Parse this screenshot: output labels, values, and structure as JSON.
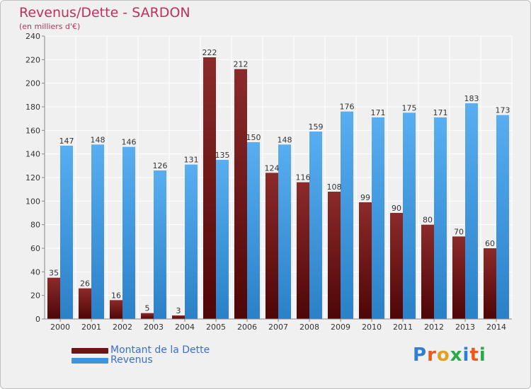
{
  "header": {
    "title": "Revenus/Dette - SARDON",
    "subtitle": "(en milliers d'€)"
  },
  "legend": [
    {
      "label": "Montant de la Dette",
      "color": "#6d1515"
    },
    {
      "label": "Revenus",
      "color": "#3f95dc"
    }
  ],
  "logo": {
    "letters": [
      "P",
      "r",
      "o",
      "x",
      "i",
      "t",
      "i"
    ],
    "colors": [
      "#2f7fd0",
      "#e85a1e",
      "#e0a020",
      "#2fa84a",
      "#2f7fd0",
      "#e85a1e",
      "#2fa84a"
    ]
  },
  "chart_data": {
    "type": "bar",
    "title": "Revenus/Dette - SARDON",
    "subtitle": "(en milliers d'€)",
    "categories": [
      "2000",
      "2001",
      "2002",
      "2003",
      "2004",
      "2005",
      "2006",
      "2007",
      "2008",
      "2009",
      "2010",
      "2011",
      "2012",
      "2013",
      "2014"
    ],
    "series": [
      {
        "name": "Montant de la Dette",
        "color": "#6d1515",
        "values": [
          35,
          26,
          16,
          5,
          3,
          222,
          212,
          124,
          116,
          108,
          99,
          90,
          80,
          70,
          60
        ]
      },
      {
        "name": "Revenus",
        "color": "#3f95dc",
        "values": [
          147,
          148,
          146,
          126,
          131,
          135,
          150,
          148,
          159,
          176,
          171,
          175,
          171,
          183,
          173
        ]
      }
    ],
    "ylim": [
      0,
      240
    ],
    "yticks": [
      0,
      20,
      40,
      60,
      80,
      100,
      120,
      140,
      160,
      180,
      200,
      220,
      240
    ],
    "grid": true,
    "legend_position": "bottom-left"
  }
}
